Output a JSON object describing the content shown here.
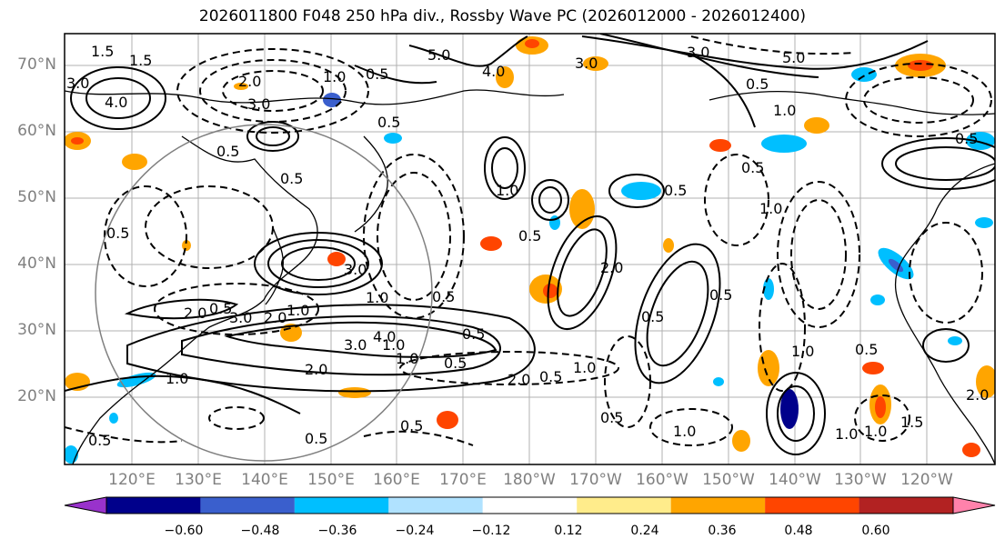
{
  "title": "2026011800 F048 250 hPa div., Rossby Wave PC (2026012000 - 2026012400)",
  "lat_labels": [
    "70°N",
    "60°N",
    "50°N",
    "40°N",
    "30°N",
    "20°N"
  ],
  "lon_labels": [
    "120°E",
    "130°E",
    "140°E",
    "150°E",
    "160°E",
    "170°E",
    "180°W",
    "170°W",
    "160°W",
    "150°W",
    "140°W",
    "130°W",
    "120°W"
  ],
  "colorbar": {
    "ticks": [
      "−0.60",
      "−0.48",
      "−0.36",
      "−0.24",
      "−0.12",
      "0.12",
      "0.24",
      "0.36",
      "0.48",
      "0.60"
    ],
    "colors": [
      "#9932cc",
      "#00008b",
      "#3a5fcd",
      "#00bfff",
      "#b0e2ff",
      "#ffffff",
      "#ffec8b",
      "#ffa500",
      "#ff4500",
      "#b22222",
      "#ff82ab"
    ]
  },
  "contour_labels": [
    "1.5",
    "1.5",
    "3.0",
    "4.0",
    "2.0",
    "3.0",
    "1.0",
    "0.5",
    "0.5",
    "5.0",
    "4.0",
    "3.0",
    "3.0",
    "5.0",
    "0.5",
    "1.0",
    "0.5",
    "0.5",
    "1.0",
    "0.5",
    "2.0",
    "0.5",
    "0.5",
    "0.5",
    "3.0",
    "1.0",
    "2.0",
    "1.0",
    "3.0",
    "0.5",
    "2.0",
    "0.5",
    "3.0",
    "1.0",
    "4.0",
    "0.5",
    "2.0",
    "1.0",
    "0.5",
    "2.0",
    "0.5",
    "0.5",
    "1.0",
    "1.0",
    "1.0",
    "0.5",
    "1.0",
    "0.5",
    "0.5",
    "1.0",
    "0.5",
    "1.0",
    "0.5",
    "1.5",
    "0.5",
    "1.0",
    "2.0",
    "0.5"
  ]
}
